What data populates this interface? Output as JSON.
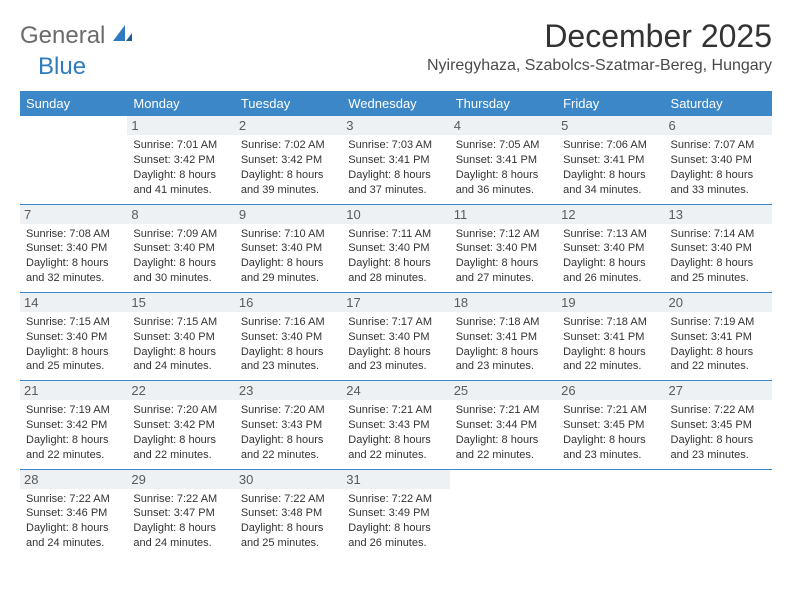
{
  "logo": {
    "general": "General",
    "blue": "Blue"
  },
  "title": "December 2025",
  "location": "Nyiregyhaza, Szabolcs-Szatmar-Bereg, Hungary",
  "colors": {
    "header_bg": "#3b87c8",
    "header_text": "#ffffff",
    "daynum_bg": "#eef1f3",
    "border": "#3b87c8",
    "logo_gray": "#6b6b6b",
    "logo_blue": "#2f7bbf"
  },
  "weekdays": [
    "Sunday",
    "Monday",
    "Tuesday",
    "Wednesday",
    "Thursday",
    "Friday",
    "Saturday"
  ],
  "weeks": [
    [
      {
        "day": "",
        "sunrise": "",
        "sunset": "",
        "daylight": ""
      },
      {
        "day": "1",
        "sunrise": "Sunrise: 7:01 AM",
        "sunset": "Sunset: 3:42 PM",
        "daylight": "Daylight: 8 hours and 41 minutes."
      },
      {
        "day": "2",
        "sunrise": "Sunrise: 7:02 AM",
        "sunset": "Sunset: 3:42 PM",
        "daylight": "Daylight: 8 hours and 39 minutes."
      },
      {
        "day": "3",
        "sunrise": "Sunrise: 7:03 AM",
        "sunset": "Sunset: 3:41 PM",
        "daylight": "Daylight: 8 hours and 37 minutes."
      },
      {
        "day": "4",
        "sunrise": "Sunrise: 7:05 AM",
        "sunset": "Sunset: 3:41 PM",
        "daylight": "Daylight: 8 hours and 36 minutes."
      },
      {
        "day": "5",
        "sunrise": "Sunrise: 7:06 AM",
        "sunset": "Sunset: 3:41 PM",
        "daylight": "Daylight: 8 hours and 34 minutes."
      },
      {
        "day": "6",
        "sunrise": "Sunrise: 7:07 AM",
        "sunset": "Sunset: 3:40 PM",
        "daylight": "Daylight: 8 hours and 33 minutes."
      }
    ],
    [
      {
        "day": "7",
        "sunrise": "Sunrise: 7:08 AM",
        "sunset": "Sunset: 3:40 PM",
        "daylight": "Daylight: 8 hours and 32 minutes."
      },
      {
        "day": "8",
        "sunrise": "Sunrise: 7:09 AM",
        "sunset": "Sunset: 3:40 PM",
        "daylight": "Daylight: 8 hours and 30 minutes."
      },
      {
        "day": "9",
        "sunrise": "Sunrise: 7:10 AM",
        "sunset": "Sunset: 3:40 PM",
        "daylight": "Daylight: 8 hours and 29 minutes."
      },
      {
        "day": "10",
        "sunrise": "Sunrise: 7:11 AM",
        "sunset": "Sunset: 3:40 PM",
        "daylight": "Daylight: 8 hours and 28 minutes."
      },
      {
        "day": "11",
        "sunrise": "Sunrise: 7:12 AM",
        "sunset": "Sunset: 3:40 PM",
        "daylight": "Daylight: 8 hours and 27 minutes."
      },
      {
        "day": "12",
        "sunrise": "Sunrise: 7:13 AM",
        "sunset": "Sunset: 3:40 PM",
        "daylight": "Daylight: 8 hours and 26 minutes."
      },
      {
        "day": "13",
        "sunrise": "Sunrise: 7:14 AM",
        "sunset": "Sunset: 3:40 PM",
        "daylight": "Daylight: 8 hours and 25 minutes."
      }
    ],
    [
      {
        "day": "14",
        "sunrise": "Sunrise: 7:15 AM",
        "sunset": "Sunset: 3:40 PM",
        "daylight": "Daylight: 8 hours and 25 minutes."
      },
      {
        "day": "15",
        "sunrise": "Sunrise: 7:15 AM",
        "sunset": "Sunset: 3:40 PM",
        "daylight": "Daylight: 8 hours and 24 minutes."
      },
      {
        "day": "16",
        "sunrise": "Sunrise: 7:16 AM",
        "sunset": "Sunset: 3:40 PM",
        "daylight": "Daylight: 8 hours and 23 minutes."
      },
      {
        "day": "17",
        "sunrise": "Sunrise: 7:17 AM",
        "sunset": "Sunset: 3:40 PM",
        "daylight": "Daylight: 8 hours and 23 minutes."
      },
      {
        "day": "18",
        "sunrise": "Sunrise: 7:18 AM",
        "sunset": "Sunset: 3:41 PM",
        "daylight": "Daylight: 8 hours and 23 minutes."
      },
      {
        "day": "19",
        "sunrise": "Sunrise: 7:18 AM",
        "sunset": "Sunset: 3:41 PM",
        "daylight": "Daylight: 8 hours and 22 minutes."
      },
      {
        "day": "20",
        "sunrise": "Sunrise: 7:19 AM",
        "sunset": "Sunset: 3:41 PM",
        "daylight": "Daylight: 8 hours and 22 minutes."
      }
    ],
    [
      {
        "day": "21",
        "sunrise": "Sunrise: 7:19 AM",
        "sunset": "Sunset: 3:42 PM",
        "daylight": "Daylight: 8 hours and 22 minutes."
      },
      {
        "day": "22",
        "sunrise": "Sunrise: 7:20 AM",
        "sunset": "Sunset: 3:42 PM",
        "daylight": "Daylight: 8 hours and 22 minutes."
      },
      {
        "day": "23",
        "sunrise": "Sunrise: 7:20 AM",
        "sunset": "Sunset: 3:43 PM",
        "daylight": "Daylight: 8 hours and 22 minutes."
      },
      {
        "day": "24",
        "sunrise": "Sunrise: 7:21 AM",
        "sunset": "Sunset: 3:43 PM",
        "daylight": "Daylight: 8 hours and 22 minutes."
      },
      {
        "day": "25",
        "sunrise": "Sunrise: 7:21 AM",
        "sunset": "Sunset: 3:44 PM",
        "daylight": "Daylight: 8 hours and 22 minutes."
      },
      {
        "day": "26",
        "sunrise": "Sunrise: 7:21 AM",
        "sunset": "Sunset: 3:45 PM",
        "daylight": "Daylight: 8 hours and 23 minutes."
      },
      {
        "day": "27",
        "sunrise": "Sunrise: 7:22 AM",
        "sunset": "Sunset: 3:45 PM",
        "daylight": "Daylight: 8 hours and 23 minutes."
      }
    ],
    [
      {
        "day": "28",
        "sunrise": "Sunrise: 7:22 AM",
        "sunset": "Sunset: 3:46 PM",
        "daylight": "Daylight: 8 hours and 24 minutes."
      },
      {
        "day": "29",
        "sunrise": "Sunrise: 7:22 AM",
        "sunset": "Sunset: 3:47 PM",
        "daylight": "Daylight: 8 hours and 24 minutes."
      },
      {
        "day": "30",
        "sunrise": "Sunrise: 7:22 AM",
        "sunset": "Sunset: 3:48 PM",
        "daylight": "Daylight: 8 hours and 25 minutes."
      },
      {
        "day": "31",
        "sunrise": "Sunrise: 7:22 AM",
        "sunset": "Sunset: 3:49 PM",
        "daylight": "Daylight: 8 hours and 26 minutes."
      },
      {
        "day": "",
        "sunrise": "",
        "sunset": "",
        "daylight": ""
      },
      {
        "day": "",
        "sunrise": "",
        "sunset": "",
        "daylight": ""
      },
      {
        "day": "",
        "sunrise": "",
        "sunset": "",
        "daylight": ""
      }
    ]
  ]
}
